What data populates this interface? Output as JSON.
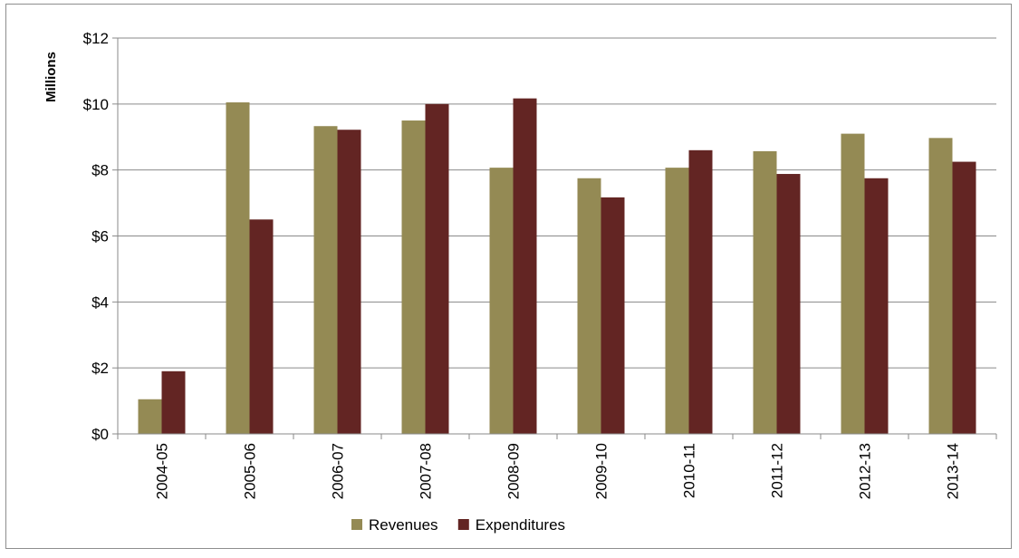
{
  "chart_data": {
    "type": "bar",
    "title": "",
    "xlabel": "",
    "ylabel": "Millions",
    "categories": [
      "2004-05",
      "2005-06",
      "2006-07",
      "2007-08",
      "2008-09",
      "2009-10",
      "2010-11",
      "2011-12",
      "2012-13",
      "2013-14"
    ],
    "series": [
      {
        "name": "Revenues",
        "color": "#948a54",
        "values": [
          1.05,
          10.05,
          9.33,
          9.5,
          8.07,
          7.75,
          8.07,
          8.57,
          9.1,
          8.97
        ]
      },
      {
        "name": "Expenditures",
        "color": "#632523",
        "values": [
          1.9,
          6.5,
          9.22,
          10.0,
          10.17,
          7.17,
          8.6,
          7.88,
          7.75,
          8.25
        ]
      }
    ],
    "ylim": [
      0,
      12
    ],
    "yticks": [
      0,
      2,
      4,
      6,
      8,
      10,
      12
    ],
    "ytick_labels": [
      "$0",
      "$2",
      "$4",
      "$6",
      "$8",
      "$10",
      "$12"
    ],
    "grid": "horizontal",
    "legend_position": "bottom"
  }
}
